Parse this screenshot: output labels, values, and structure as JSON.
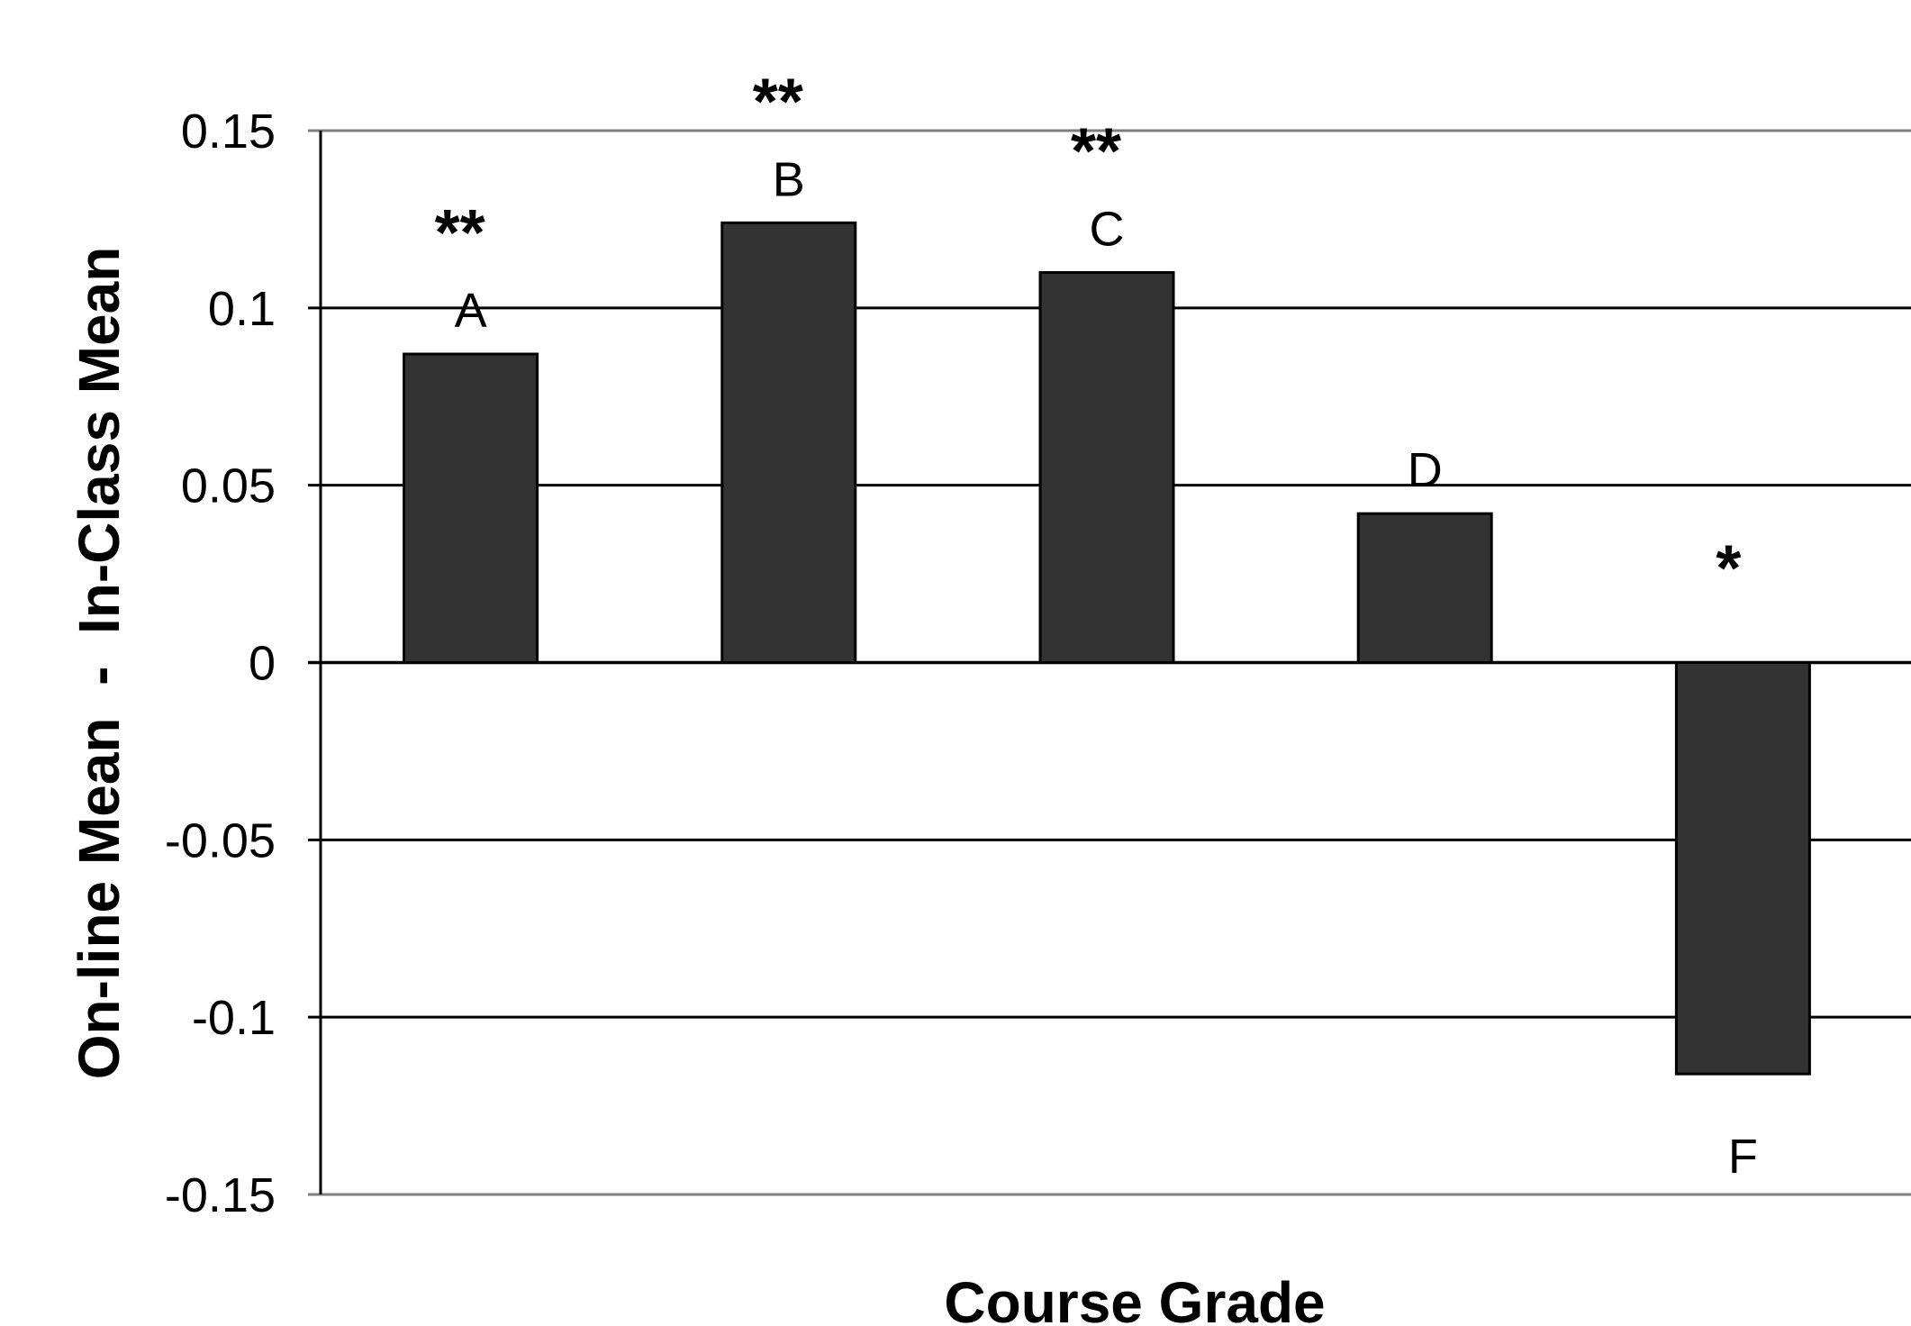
{
  "chart_data": {
    "type": "bar",
    "title": "",
    "xlabel": "Course Grade",
    "ylabel": "On-line Mean  -  In-Class Mean",
    "ylim": [
      -0.15,
      0.15
    ],
    "yticks": [
      "0.15",
      "0.1",
      "0.05",
      "0",
      "-0.05",
      "-0.1",
      "-0.15"
    ],
    "ytick_values": [
      0.15,
      0.1,
      0.05,
      0,
      -0.05,
      -0.1,
      -0.15
    ],
    "grid": true,
    "legend": "none",
    "categories": [
      "A",
      "B",
      "C",
      "D",
      "F"
    ],
    "values": [
      0.087,
      0.124,
      0.11,
      0.042,
      -0.116
    ],
    "significance": [
      "**",
      "**",
      "**",
      "",
      "*"
    ],
    "bar_color": "#333333",
    "grid_color": "#000000"
  }
}
